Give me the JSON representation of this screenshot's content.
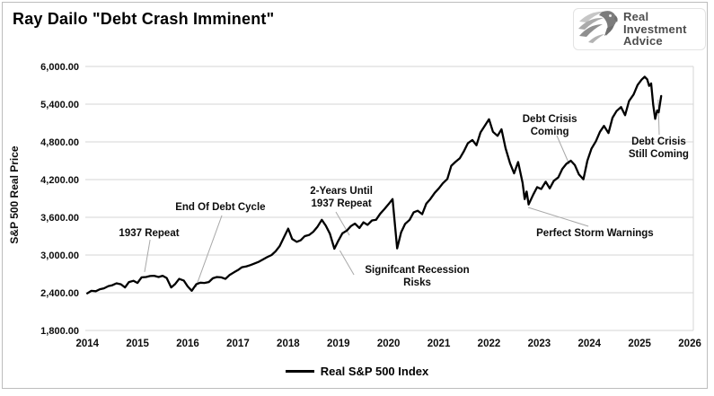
{
  "header": {
    "title": "Ray Dailo \"Debt Crash Imminent\""
  },
  "logo": {
    "alt": "Real Investment Advice",
    "lines": [
      "Real",
      "Investment",
      "Advice"
    ]
  },
  "legend": {
    "entries": [
      {
        "label": "Real S&P 500 Index",
        "color": "#000000"
      }
    ]
  },
  "chart_data": {
    "type": "line",
    "title": "Ray Dailo \"Debt Crash Imminent\"",
    "ylabel": "S&P 500 Real Price",
    "xlabel": "",
    "xlim": [
      2013.96,
      2026.07
    ],
    "ylim": [
      1800,
      6000
    ],
    "grid": "horizontal-only",
    "gridline_color": "#d6d6d6",
    "leader_color": "#a8a8a8",
    "background": "#ffffff",
    "legend_position": "bottom-center",
    "y_ticks": [
      {
        "v": 6000,
        "label": "6,000.00"
      },
      {
        "v": 5400,
        "label": "5,400.00"
      },
      {
        "v": 4800,
        "label": "4,800.00"
      },
      {
        "v": 4200,
        "label": "4,200.00"
      },
      {
        "v": 3600,
        "label": "3,600.00"
      },
      {
        "v": 3000,
        "label": "3,000.00"
      },
      {
        "v": 2400,
        "label": "2,400.00"
      },
      {
        "v": 1800,
        "label": "1,800.00"
      }
    ],
    "x_ticks": [
      {
        "v": 2014,
        "label": "2014"
      },
      {
        "v": 2015,
        "label": "2015"
      },
      {
        "v": 2016,
        "label": "2016"
      },
      {
        "v": 2017,
        "label": "2017"
      },
      {
        "v": 2018,
        "label": "2018"
      },
      {
        "v": 2019,
        "label": "2019"
      },
      {
        "v": 2020,
        "label": "2020"
      },
      {
        "v": 2021,
        "label": "2021"
      },
      {
        "v": 2022,
        "label": "2022"
      },
      {
        "v": 2023,
        "label": "2023"
      },
      {
        "v": 2024,
        "label": "2024"
      },
      {
        "v": 2025,
        "label": "2025"
      },
      {
        "v": 2026,
        "label": "2026"
      }
    ],
    "series": [
      {
        "name": "Real S&P 500 Index",
        "color": "#000000",
        "points": [
          [
            2014.0,
            2390
          ],
          [
            2014.08,
            2430
          ],
          [
            2014.17,
            2425
          ],
          [
            2014.25,
            2455
          ],
          [
            2014.33,
            2470
          ],
          [
            2014.42,
            2505
          ],
          [
            2014.5,
            2520
          ],
          [
            2014.58,
            2550
          ],
          [
            2014.67,
            2535
          ],
          [
            2014.75,
            2485
          ],
          [
            2014.83,
            2570
          ],
          [
            2014.92,
            2590
          ],
          [
            2015.0,
            2555
          ],
          [
            2015.08,
            2645
          ],
          [
            2015.17,
            2650
          ],
          [
            2015.25,
            2665
          ],
          [
            2015.33,
            2670
          ],
          [
            2015.42,
            2650
          ],
          [
            2015.5,
            2670
          ],
          [
            2015.58,
            2635
          ],
          [
            2015.67,
            2485
          ],
          [
            2015.75,
            2540
          ],
          [
            2015.83,
            2620
          ],
          [
            2015.92,
            2595
          ],
          [
            2016.0,
            2500
          ],
          [
            2016.08,
            2432
          ],
          [
            2016.17,
            2535
          ],
          [
            2016.25,
            2560
          ],
          [
            2016.33,
            2555
          ],
          [
            2016.42,
            2570
          ],
          [
            2016.5,
            2630
          ],
          [
            2016.58,
            2650
          ],
          [
            2016.67,
            2645
          ],
          [
            2016.75,
            2620
          ],
          [
            2016.83,
            2680
          ],
          [
            2016.92,
            2725
          ],
          [
            2017.0,
            2760
          ],
          [
            2017.08,
            2805
          ],
          [
            2017.17,
            2820
          ],
          [
            2017.25,
            2840
          ],
          [
            2017.33,
            2865
          ],
          [
            2017.42,
            2895
          ],
          [
            2017.5,
            2930
          ],
          [
            2017.58,
            2965
          ],
          [
            2017.67,
            3000
          ],
          [
            2017.75,
            3060
          ],
          [
            2017.83,
            3140
          ],
          [
            2017.92,
            3290
          ],
          [
            2018.0,
            3420
          ],
          [
            2018.08,
            3255
          ],
          [
            2018.17,
            3210
          ],
          [
            2018.25,
            3235
          ],
          [
            2018.33,
            3300
          ],
          [
            2018.42,
            3320
          ],
          [
            2018.5,
            3370
          ],
          [
            2018.58,
            3445
          ],
          [
            2018.67,
            3560
          ],
          [
            2018.75,
            3465
          ],
          [
            2018.83,
            3340
          ],
          [
            2018.92,
            3100
          ],
          [
            2019.0,
            3230
          ],
          [
            2019.08,
            3345
          ],
          [
            2019.17,
            3390
          ],
          [
            2019.25,
            3460
          ],
          [
            2019.33,
            3500
          ],
          [
            2019.42,
            3430
          ],
          [
            2019.5,
            3520
          ],
          [
            2019.58,
            3480
          ],
          [
            2019.67,
            3550
          ],
          [
            2019.75,
            3560
          ],
          [
            2019.83,
            3655
          ],
          [
            2019.92,
            3735
          ],
          [
            2020.0,
            3810
          ],
          [
            2020.08,
            3890
          ],
          [
            2020.17,
            3105
          ],
          [
            2020.25,
            3360
          ],
          [
            2020.33,
            3495
          ],
          [
            2020.42,
            3560
          ],
          [
            2020.5,
            3680
          ],
          [
            2020.58,
            3705
          ],
          [
            2020.67,
            3650
          ],
          [
            2020.75,
            3815
          ],
          [
            2020.83,
            3890
          ],
          [
            2020.92,
            3990
          ],
          [
            2021.0,
            4060
          ],
          [
            2021.08,
            4140
          ],
          [
            2021.17,
            4210
          ],
          [
            2021.25,
            4420
          ],
          [
            2021.33,
            4480
          ],
          [
            2021.42,
            4540
          ],
          [
            2021.5,
            4650
          ],
          [
            2021.58,
            4780
          ],
          [
            2021.67,
            4830
          ],
          [
            2021.75,
            4745
          ],
          [
            2021.83,
            4950
          ],
          [
            2021.92,
            5060
          ],
          [
            2022.0,
            5160
          ],
          [
            2022.08,
            4960
          ],
          [
            2022.17,
            4895
          ],
          [
            2022.25,
            5000
          ],
          [
            2022.33,
            4700
          ],
          [
            2022.42,
            4460
          ],
          [
            2022.5,
            4300
          ],
          [
            2022.58,
            4480
          ],
          [
            2022.67,
            4145
          ],
          [
            2022.71,
            3890
          ],
          [
            2022.75,
            4010
          ],
          [
            2022.79,
            3805
          ],
          [
            2022.88,
            3960
          ],
          [
            2022.96,
            4080
          ],
          [
            2023.04,
            4050
          ],
          [
            2023.13,
            4165
          ],
          [
            2023.21,
            4060
          ],
          [
            2023.29,
            4180
          ],
          [
            2023.38,
            4235
          ],
          [
            2023.46,
            4370
          ],
          [
            2023.54,
            4450
          ],
          [
            2023.63,
            4500
          ],
          [
            2023.71,
            4430
          ],
          [
            2023.79,
            4285
          ],
          [
            2023.88,
            4205
          ],
          [
            2023.96,
            4500
          ],
          [
            2024.04,
            4690
          ],
          [
            2024.13,
            4810
          ],
          [
            2024.21,
            4960
          ],
          [
            2024.29,
            5055
          ],
          [
            2024.38,
            4940
          ],
          [
            2024.46,
            5185
          ],
          [
            2024.54,
            5290
          ],
          [
            2024.63,
            5355
          ],
          [
            2024.71,
            5225
          ],
          [
            2024.79,
            5450
          ],
          [
            2024.88,
            5555
          ],
          [
            2024.96,
            5705
          ],
          [
            2025.04,
            5790
          ],
          [
            2025.1,
            5835
          ],
          [
            2025.15,
            5795
          ],
          [
            2025.19,
            5690
          ],
          [
            2025.23,
            5730
          ],
          [
            2025.27,
            5390
          ],
          [
            2025.31,
            5165
          ],
          [
            2025.35,
            5300
          ],
          [
            2025.38,
            5270
          ],
          [
            2025.43,
            5530
          ]
        ]
      }
    ],
    "annotations": [
      {
        "id": "1937-repeat",
        "lines": [
          "1937 Repeat"
        ],
        "text_at": [
          2015.23,
          3350
        ],
        "arrow_from": [
          2015.25,
          3243
        ],
        "arrow_to": [
          2015.14,
          2729
        ]
      },
      {
        "id": "end-of-debt-cycle",
        "lines": [
          "End Of Debt Cycle"
        ],
        "text_at": [
          2016.65,
          3757
        ],
        "arrow_from": [
          2016.68,
          3629
        ],
        "arrow_to": [
          2016.16,
          2486
        ]
      },
      {
        "id": "2-years-until-1937-repeat",
        "lines": [
          "2-Years Until",
          "1937 Repeat"
        ],
        "text_at": [
          2019.06,
          3914
        ],
        "arrow_from": [
          2018.95,
          3686
        ],
        "arrow_to": [
          2019.22,
          3314
        ]
      },
      {
        "id": "significant-recession-risks",
        "lines": [
          "Signifcant Recession",
          "Risks"
        ],
        "text_at": [
          2020.57,
          2657
        ],
        "arrow_from": [
          2019.31,
          2686
        ],
        "arrow_to": [
          2019.03,
          3071
        ]
      },
      {
        "id": "debt-crisis-coming",
        "lines": [
          "Debt Crisis",
          "Coming"
        ],
        "text_at": [
          2023.21,
          5057
        ],
        "arrow_from": [
          2023.35,
          4900
        ],
        "arrow_to": [
          2023.6,
          4443
        ]
      },
      {
        "id": "perfect-storm-warnings",
        "lines": [
          "Perfect Storm Warnings"
        ],
        "text_at": [
          2024.11,
          3343
        ],
        "arrow_from": [
          2023.98,
          3457
        ],
        "arrow_to": [
          2022.78,
          3757
        ]
      },
      {
        "id": "debt-crisis-still-coming",
        "lines": [
          "Debt Crisis",
          "Still Coming"
        ],
        "text_at": [
          2025.38,
          4700
        ],
        "arrow_from": [
          2025.39,
          4914
        ],
        "arrow_to": [
          2025.37,
          5471
        ]
      }
    ]
  }
}
